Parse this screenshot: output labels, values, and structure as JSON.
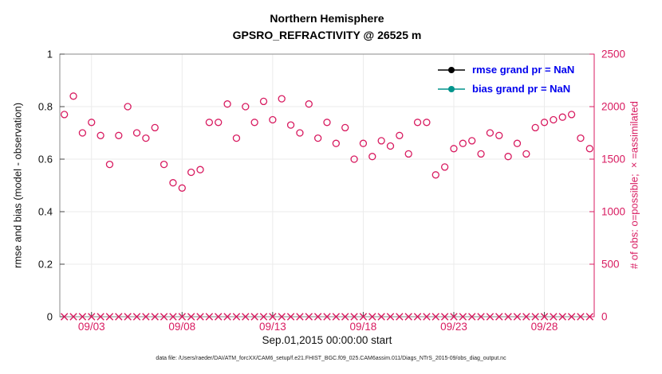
{
  "caption": "data file: /Users/raeder/DAI/ATM_forcXX/CAM6_setup/f.e21.FHIST_BGC.f09_025.CAM6assim.011/Diags_NTrS_2015-09/obs_diag_output.nc",
  "colors": {
    "obs_accent": "#d81b60",
    "rmse": "#000000",
    "bias": "#00948c",
    "legend_text": "#0000ee",
    "axis_box": "#8a8a8a",
    "gridline": "#ebebeb",
    "tick_text_left": "#111111"
  },
  "chart_data": {
    "type": "scatter",
    "title": "Northern Hemisphere",
    "subtitle": "GPSRO_REFRACTIVITY @ 26525 m",
    "xlabel": "Sep.01,2015 00:00:00 start",
    "ylabel_left": "rmse and bias (model - observation)",
    "ylabel_right": "# of obs: o=possible; ×=assimilated",
    "ylim_left": [
      0,
      1
    ],
    "ylim_right": [
      0,
      2500
    ],
    "yticks_left": [
      "0",
      "0.2",
      "0.4",
      "0.6",
      "0.8",
      "1"
    ],
    "yticks_right": [
      "0",
      "500",
      "1000",
      "1500",
      "2000",
      "2500"
    ],
    "xlim_days": [
      1.25,
      30.75
    ],
    "xticks": [
      {
        "day": 3,
        "label": "09/03"
      },
      {
        "day": 8,
        "label": "09/08"
      },
      {
        "day": 13,
        "label": "09/13"
      },
      {
        "day": 18,
        "label": "09/18"
      },
      {
        "day": 23,
        "label": "09/23"
      },
      {
        "day": 28,
        "label": "09/28"
      }
    ],
    "grid": true,
    "legend_position": "top-right-inside",
    "obs_x_days": [
      1.5,
      2,
      2.5,
      3,
      3.5,
      4,
      4.5,
      5,
      5.5,
      6,
      6.5,
      7,
      7.5,
      8,
      8.5,
      9,
      9.5,
      10,
      10.5,
      11,
      11.5,
      12,
      12.5,
      13,
      13.5,
      14,
      14.5,
      15,
      15.5,
      16,
      16.5,
      17,
      17.5,
      18,
      18.5,
      19,
      19.5,
      20,
      20.5,
      21,
      21.5,
      22,
      22.5,
      23,
      23.5,
      24,
      24.5,
      25,
      25.5,
      26,
      26.5,
      27,
      27.5,
      28,
      28.5,
      29,
      29.5,
      30,
      30.5
    ],
    "series": [
      {
        "name": "rmse grand pr = NaN",
        "color": "#000000",
        "marker": "filled-circle-line",
        "axis": "left",
        "y": []
      },
      {
        "name": "bias grand pr = NaN",
        "color": "#00948c",
        "marker": "filled-circle-line",
        "axis": "left",
        "y": []
      },
      {
        "name": "# of obs possible (o)",
        "color": "#d81b60",
        "marker": "open-circle",
        "axis": "right",
        "y": [
          1925,
          2100,
          1750,
          1850,
          1725,
          1450,
          1725,
          2000,
          1750,
          1700,
          1800,
          1450,
          1275,
          1225,
          1375,
          1400,
          1850,
          1850,
          2025,
          1700,
          2000,
          1850,
          2050,
          1875,
          2075,
          1825,
          1750,
          2025,
          1700,
          1850,
          1650,
          1800,
          1500,
          1650,
          1525,
          1675,
          1625,
          1725,
          1550,
          1850,
          1850,
          1350,
          1425,
          1600,
          1650,
          1675,
          1550,
          1750,
          1725,
          1525,
          1650,
          1550,
          1800,
          1850,
          1875,
          1900,
          1925,
          1700,
          1600
        ]
      },
      {
        "name": "# of obs assimilated (×)",
        "color": "#d81b60",
        "marker": "x",
        "axis": "right",
        "y_value": 0
      }
    ]
  }
}
